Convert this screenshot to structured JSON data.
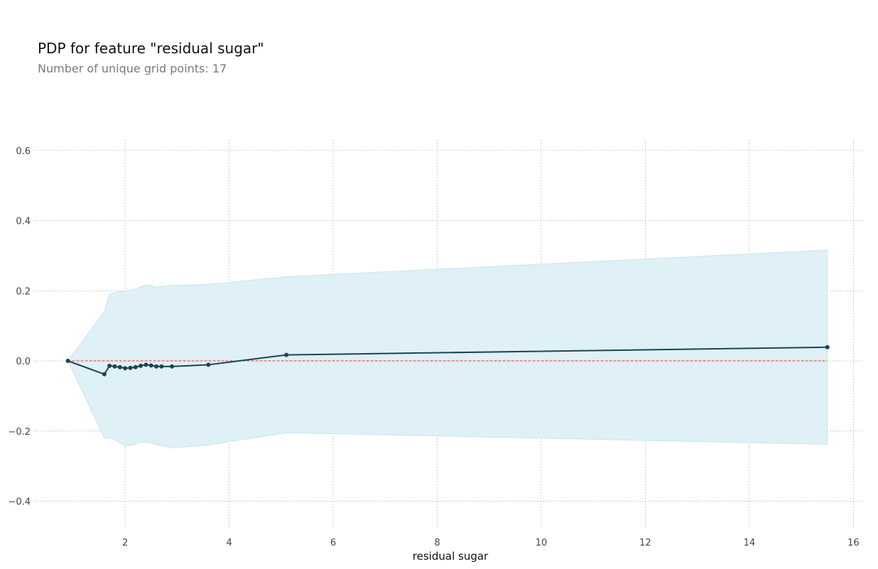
{
  "header": {
    "title": "PDP for feature \"residual sugar\"",
    "subtitle": "Number of unique grid points: 17"
  },
  "chart_data": {
    "type": "line",
    "title": "PDP for feature \"residual sugar\"",
    "subtitle": "Number of unique grid points: 17",
    "xlabel": "residual sugar",
    "ylabel": "",
    "xlim": [
      0.25,
      16.2
    ],
    "ylim": [
      -0.48,
      0.63
    ],
    "xticks": [
      2,
      4,
      6,
      8,
      10,
      12,
      14,
      16
    ],
    "xtick_labels": [
      "2",
      "4",
      "6",
      "8",
      "10",
      "12",
      "14",
      "16"
    ],
    "yticks": [
      -0.4,
      -0.2,
      0.0,
      0.2,
      0.4,
      0.6
    ],
    "ytick_labels": [
      "−0.4",
      "−0.2",
      "0.0",
      "0.2",
      "0.4",
      "0.6"
    ],
    "grid": true,
    "x": [
      0.9,
      1.6,
      1.7,
      1.8,
      1.9,
      2.0,
      2.1,
      2.2,
      2.3,
      2.4,
      2.5,
      2.6,
      2.7,
      2.9,
      3.6,
      5.1,
      15.5
    ],
    "series": [
      {
        "values": [
          0.0,
          -0.038,
          -0.014,
          -0.016,
          -0.018,
          -0.021,
          -0.02,
          -0.018,
          -0.014,
          -0.011,
          -0.013,
          -0.016,
          -0.016,
          -0.016,
          -0.011,
          0.017,
          0.039
        ]
      }
    ],
    "band_upper": [
      0.0,
      0.14,
      0.19,
      0.195,
      0.198,
      0.2,
      0.202,
      0.205,
      0.212,
      0.216,
      0.215,
      0.21,
      0.212,
      0.215,
      0.218,
      0.24,
      0.316
    ],
    "band_lower": [
      0.0,
      -0.22,
      -0.22,
      -0.225,
      -0.235,
      -0.243,
      -0.24,
      -0.238,
      -0.232,
      -0.232,
      -0.235,
      -0.24,
      -0.242,
      -0.248,
      -0.24,
      -0.205,
      -0.238
    ],
    "reference_line": 0.0,
    "colors": {
      "line": "#1b4556",
      "band": "#dff0f6",
      "band_edge": "#c9e6ef",
      "reference": "#e0412f",
      "grid": "#b8b8b8"
    }
  }
}
